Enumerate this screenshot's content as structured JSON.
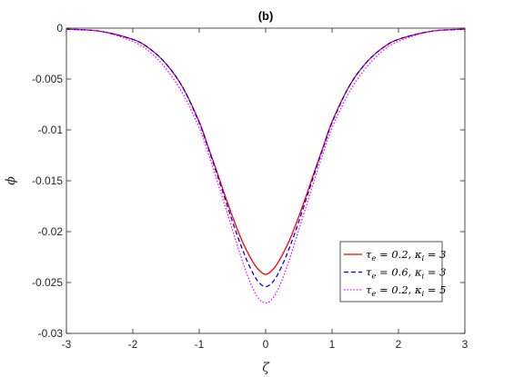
{
  "chart_data": {
    "type": "line",
    "title": "(b)",
    "xlabel": "ζ",
    "ylabel": "ϕ",
    "xlim": [
      -3,
      3
    ],
    "ylim": [
      -0.03,
      0
    ],
    "xticks": [
      -3,
      -2,
      -1,
      0,
      1,
      2,
      3
    ],
    "xtick_labels": [
      "-3",
      "-2",
      "-1",
      "0",
      "1",
      "2",
      "3"
    ],
    "yticks": [
      0,
      -0.005,
      -0.01,
      -0.015,
      -0.02,
      -0.025,
      -0.03
    ],
    "ytick_labels": [
      "0",
      "-0.005",
      "-0.01",
      "-0.015",
      "-0.02",
      "-0.025",
      "-0.03"
    ],
    "grid": false,
    "legend_position": "bottom-right",
    "x": [
      -3.0,
      -2.5,
      -2.0,
      -1.75,
      -1.5,
      -1.25,
      -1.0,
      -0.875,
      -0.75,
      -0.625,
      -0.5,
      -0.375,
      -0.25,
      -0.125,
      0.0,
      0.125,
      0.25,
      0.375,
      0.5,
      0.625,
      0.75,
      0.875,
      1.0,
      1.25,
      1.5,
      1.75,
      2.0,
      2.5,
      3.0
    ],
    "series": [
      {
        "name": "τe = 0.2, κi = 3",
        "color": "#ff0000",
        "style": "solid",
        "values": [
          -0.0001,
          -0.0003,
          -0.0011,
          -0.002,
          -0.0035,
          -0.0058,
          -0.0092,
          -0.0115,
          -0.0138,
          -0.0162,
          -0.0185,
          -0.0206,
          -0.0223,
          -0.0236,
          -0.0242,
          -0.0236,
          -0.0223,
          -0.0206,
          -0.0185,
          -0.0162,
          -0.0138,
          -0.0115,
          -0.0092,
          -0.0058,
          -0.0035,
          -0.002,
          -0.0011,
          -0.0003,
          -0.0001
        ]
      },
      {
        "name": "τe = 0.6, κi = 3",
        "color": "#0000ff",
        "style": "dashed",
        "values": [
          -0.0001,
          -0.0003,
          -0.0011,
          -0.002,
          -0.0035,
          -0.0058,
          -0.0093,
          -0.0116,
          -0.014,
          -0.0165,
          -0.019,
          -0.0213,
          -0.0233,
          -0.0248,
          -0.0254,
          -0.0248,
          -0.0233,
          -0.0213,
          -0.019,
          -0.0165,
          -0.014,
          -0.0116,
          -0.0093,
          -0.0058,
          -0.0035,
          -0.002,
          -0.0011,
          -0.0003,
          -0.0001
        ]
      },
      {
        "name": "τe = 0.2, κi = 5",
        "color": "#ff00ff",
        "style": "dotted",
        "values": [
          -0.0001,
          -0.0003,
          -0.0013,
          -0.0023,
          -0.004,
          -0.0064,
          -0.0098,
          -0.0121,
          -0.0146,
          -0.0172,
          -0.0198,
          -0.0224,
          -0.0247,
          -0.0264,
          -0.027,
          -0.0264,
          -0.0247,
          -0.0224,
          -0.0198,
          -0.0172,
          -0.0146,
          -0.0121,
          -0.0098,
          -0.0064,
          -0.004,
          -0.0023,
          -0.0013,
          -0.0003,
          -0.0001
        ]
      }
    ],
    "legend": [
      {
        "pre": "τ",
        "sub1": "e",
        "mid": " = 0.2, κ",
        "sub2": "i",
        "post": " = 3"
      },
      {
        "pre": "τ",
        "sub1": "e",
        "mid": " = 0.6, κ",
        "sub2": "i",
        "post": " = 3"
      },
      {
        "pre": "τ",
        "sub1": "e",
        "mid": " = 0.2, κ",
        "sub2": "i",
        "post": " = 5"
      }
    ]
  }
}
